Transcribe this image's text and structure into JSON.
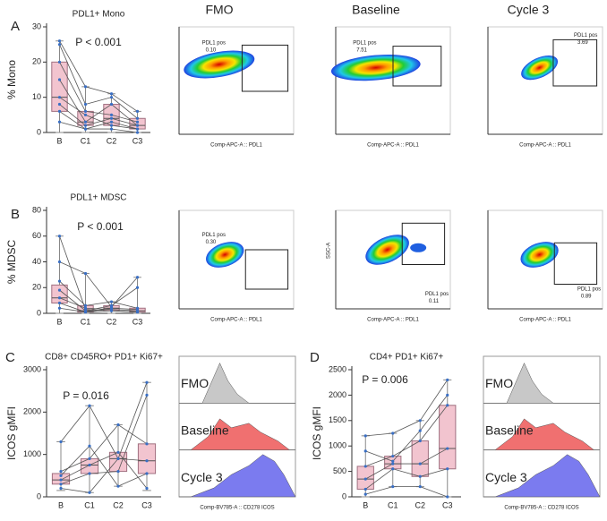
{
  "chart_data": [
    {
      "type": "box",
      "panel": "A",
      "title": "PDL1+ Mono",
      "y_label": "% Mono",
      "annotation": "P < 0.001",
      "categories": [
        "B",
        "C1",
        "C2",
        "C3"
      ],
      "ylim": [
        0,
        30
      ],
      "yticks": [
        0,
        10,
        20,
        30
      ],
      "box_color": "#f2c4cf",
      "line_color": "#555555",
      "point_color": "#3a6fc4",
      "boxes": [
        {
          "min": 0,
          "q1": 6,
          "median": 10,
          "q3": 20,
          "max": 26
        },
        {
          "min": 0,
          "q1": 2,
          "median": 3,
          "q3": 6,
          "max": 13
        },
        {
          "min": 0,
          "q1": 2,
          "median": 4,
          "q3": 8,
          "max": 11
        },
        {
          "min": 0,
          "q1": 1,
          "median": 2,
          "q3": 4,
          "max": 6
        }
      ],
      "lines": [
        [
          26,
          13,
          11,
          6
        ],
        [
          25,
          8,
          10,
          4
        ],
        [
          20,
          6,
          5,
          3
        ],
        [
          15,
          3,
          8,
          2
        ],
        [
          10,
          5,
          2,
          1
        ],
        [
          8,
          2,
          4,
          2
        ],
        [
          6,
          1,
          3,
          1
        ],
        [
          3,
          1,
          1,
          0
        ]
      ]
    },
    {
      "type": "box",
      "panel": "B",
      "title": "PDL1+ MDSC",
      "y_label": "% MDSC",
      "annotation": "P < 0.001",
      "categories": [
        "B",
        "C1",
        "C2",
        "C3"
      ],
      "ylim": [
        0,
        80
      ],
      "yticks": [
        0,
        20,
        40,
        60,
        80
      ],
      "box_color": "#f2c4cf",
      "line_color": "#555555",
      "point_color": "#3a6fc4",
      "boxes": [
        {
          "min": 0,
          "q1": 8,
          "median": 12,
          "q3": 22,
          "max": 60
        },
        {
          "min": 0,
          "q1": 1,
          "median": 2,
          "q3": 6,
          "max": 31
        },
        {
          "min": 0,
          "q1": 2,
          "median": 4,
          "q3": 6,
          "max": 9
        },
        {
          "min": 0,
          "q1": 1,
          "median": 2,
          "q3": 4,
          "max": 28
        }
      ],
      "lines": [
        [
          60,
          3,
          2,
          1
        ],
        [
          40,
          31,
          5,
          28
        ],
        [
          25,
          6,
          9,
          4
        ],
        [
          18,
          2,
          6,
          20
        ],
        [
          12,
          4,
          3,
          2
        ],
        [
          8,
          1,
          2,
          1
        ],
        [
          4,
          1,
          4,
          3
        ]
      ]
    },
    {
      "type": "box",
      "panel": "C",
      "title": "CD8+ CD45RO+ PD1+ Ki67+",
      "y_label": "ICOS gMFI",
      "annotation": "P = 0.016",
      "categories": [
        "B",
        "C1",
        "C2",
        "C3"
      ],
      "ylim": [
        0,
        3000
      ],
      "yticks": [
        0,
        1000,
        2000,
        3000
      ],
      "box_color": "#f2c4cf",
      "line_color": "#555555",
      "point_color": "#3a6fc4",
      "boxes": [
        {
          "min": 150,
          "q1": 300,
          "median": 400,
          "q3": 550,
          "max": 1300
        },
        {
          "min": 100,
          "q1": 550,
          "median": 750,
          "q3": 900,
          "max": 2150
        },
        {
          "min": 250,
          "q1": 600,
          "median": 900,
          "q3": 1050,
          "max": 1700
        },
        {
          "min": 150,
          "q1": 550,
          "median": 850,
          "q3": 1250,
          "max": 2700
        }
      ],
      "lines": [
        [
          1300,
          2150,
          900,
          2700
        ],
        [
          600,
          900,
          1700,
          1250
        ],
        [
          400,
          750,
          1050,
          200
        ],
        [
          300,
          550,
          600,
          2400
        ],
        [
          200,
          100,
          900,
          850
        ],
        [
          500,
          1200,
          250,
          550
        ]
      ]
    },
    {
      "type": "box",
      "panel": "D",
      "title": "CD4+ PD1+ Ki67+",
      "y_label": "ICOS gMFI",
      "annotation": "P = 0.006",
      "categories": [
        "B",
        "C1",
        "C2",
        "C3"
      ],
      "ylim": [
        0,
        2500
      ],
      "yticks": [
        0,
        500,
        1000,
        1500,
        2000,
        2500
      ],
      "box_color": "#f2c4cf",
      "line_color": "#555555",
      "point_color": "#3a6fc4",
      "boxes": [
        {
          "min": 0,
          "q1": 150,
          "median": 350,
          "q3": 600,
          "max": 1200
        },
        {
          "min": 200,
          "q1": 550,
          "median": 650,
          "q3": 800,
          "max": 1250
        },
        {
          "min": 200,
          "q1": 400,
          "median": 650,
          "q3": 1100,
          "max": 1500
        },
        {
          "min": 0,
          "q1": 550,
          "median": 950,
          "q3": 1800,
          "max": 2300
        }
      ],
      "lines": [
        [
          1200,
          1250,
          1500,
          2300
        ],
        [
          600,
          800,
          1100,
          1800
        ],
        [
          350,
          650,
          650,
          950
        ],
        [
          150,
          550,
          400,
          550
        ],
        [
          50,
          200,
          200,
          0
        ],
        [
          900,
          700,
          1300,
          2000
        ]
      ]
    }
  ],
  "flow": {
    "headers": [
      "FMO",
      "Baseline",
      "Cycle 3"
    ],
    "plots": [
      {
        "gate_label": "PDL1 pos",
        "gate_value": "0.10",
        "x_label": "Comp-APC-A :: PDL1"
      },
      {
        "gate_label": "PDL1 pos",
        "gate_value": "7.51",
        "x_label": "Comp-APC-A :: PDL1"
      },
      {
        "gate_label": "PDL1 pos",
        "gate_value": "3.69",
        "x_label": "Comp-APC-A :: PDL1"
      },
      {
        "gate_label": "PDL1 pos",
        "gate_value": "0.30",
        "x_label": "Comp-APC-A :: PDL1"
      },
      {
        "gate_label": "PDL1 pos",
        "gate_value": "0.11",
        "x_label": "Comp-APC-A :: PDL1",
        "y_label": "SSC-A"
      },
      {
        "gate_label": "PDL1 pos",
        "gate_value": "0.89",
        "x_label": "Comp-APC-A :: PDL1"
      }
    ]
  },
  "histograms": [
    {
      "labels": [
        "FMO",
        "Baseline",
        "Cycle 3"
      ],
      "x_label": "Comp-BV785-A :: CD278 ICOS"
    },
    {
      "labels": [
        "FMO",
        "Baseline",
        "Cycle 3"
      ],
      "x_label": "Comp-BV785-A :: CD278 ICOS"
    }
  ]
}
